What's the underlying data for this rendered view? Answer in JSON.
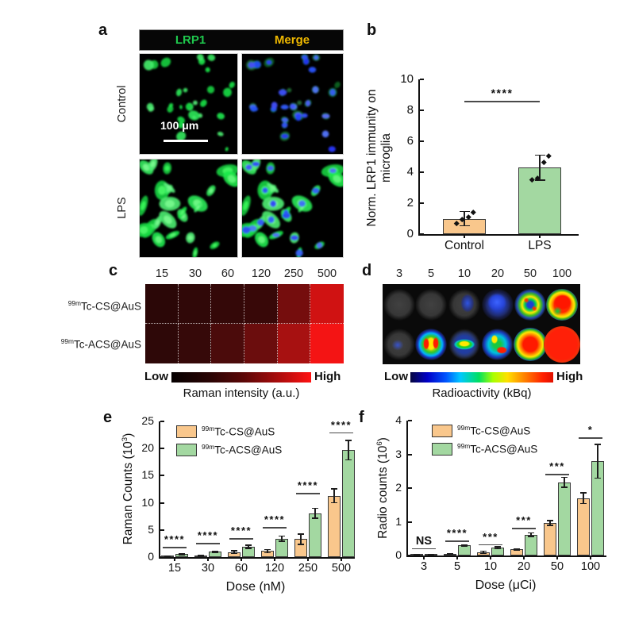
{
  "figure": {
    "panel_a": {
      "label": "a",
      "columns": [
        {
          "label": "LRP1",
          "color": "#1fc84d"
        },
        {
          "label": "Merge",
          "color": "#eeb800"
        }
      ],
      "rows": [
        {
          "label": "Control"
        },
        {
          "label": "LPS"
        }
      ],
      "scale_bar_label": "100 μm"
    },
    "panel_b": {
      "label": "b"
    },
    "panel_c": {
      "label": "c",
      "doses": [
        "15",
        "30",
        "60",
        "120",
        "250",
        "500"
      ],
      "row_labels": [
        {
          "sup": "99m",
          "text": "Tc-CS@AuS"
        },
        {
          "sup": "99m",
          "text": "Tc-ACS@AuS"
        }
      ],
      "cell_colors": [
        [
          "#2B0707",
          "#300808",
          "#340808",
          "#380808",
          "#750D0D",
          "#D01212"
        ],
        [
          "#2E0808",
          "#360909",
          "#4B0B0B",
          "#6B0D0D",
          "#A71111",
          "#F41414"
        ]
      ],
      "colorbar": {
        "low": "Low",
        "high": "High"
      },
      "caption": "Raman intensity (a.u.)"
    },
    "panel_d": {
      "label": "d",
      "doses": [
        "3",
        "5",
        "10",
        "20",
        "50",
        "100"
      ],
      "wells": [
        [
          "gray",
          "gray",
          "gray-blue",
          "blue",
          "ring",
          "red-green"
        ],
        [
          "gray-blue-sm",
          "hot-double",
          "green-bar",
          "swirl",
          "red-ring",
          "full-red"
        ]
      ],
      "colorbar": {
        "low": "Low",
        "high": "High"
      },
      "caption": "Radioactivity (kBq)"
    },
    "panel_e": {
      "label": "e"
    },
    "panel_f": {
      "label": "f"
    }
  },
  "chart_data": [
    {
      "id": "b",
      "type": "bar",
      "ylabel_lines": [
        "Norm. LRP1 immunity on",
        "microglia"
      ],
      "categories": [
        "Control",
        "LPS"
      ],
      "values": [
        1.0,
        4.3
      ],
      "errors": [
        0.45,
        0.8
      ],
      "points": [
        [
          0.72,
          0.95,
          1.12,
          1.45
        ],
        [
          3.52,
          3.62,
          4.68,
          5.08
        ]
      ],
      "bar_colors": [
        "#F9C78C",
        "#A3D8A1"
      ],
      "ylim": [
        0,
        10
      ],
      "yticks": [
        0,
        2,
        4,
        6,
        8,
        10
      ],
      "sig": {
        "label": "****",
        "y": 8.6
      }
    },
    {
      "id": "e",
      "type": "bar",
      "grouped": true,
      "ylabel_parts": {
        "pre": "Raman Counts (10",
        "sup": "3",
        "post": ")"
      },
      "xlabel": "Dose (nM)",
      "categories": [
        "15",
        "30",
        "60",
        "120",
        "250",
        "500"
      ],
      "series": [
        {
          "name_sup": "99m",
          "name": "Tc-CS@AuS",
          "color": "#F9C78C",
          "values": [
            0.15,
            0.2,
            0.9,
            1.1,
            3.3,
            11.3
          ],
          "errors": [
            0.05,
            0.06,
            0.25,
            0.3,
            0.95,
            1.3
          ]
        },
        {
          "name_sup": "99m",
          "name": "Tc-ACS@AuS",
          "color": "#A3D8A1",
          "values": [
            0.55,
            1.0,
            1.9,
            3.4,
            8.1,
            19.7
          ],
          "errors": [
            0.1,
            0.12,
            0.3,
            0.45,
            0.9,
            1.8
          ]
        }
      ],
      "ylim": [
        0,
        25
      ],
      "yticks": [
        0,
        5,
        10,
        15,
        20,
        25
      ],
      "sig": [
        {
          "label": "****",
          "y": 1.9
        },
        {
          "label": "****",
          "y": 2.6
        },
        {
          "label": "****",
          "y": 3.5
        },
        {
          "label": "****",
          "y": 5.5
        },
        {
          "label": "****",
          "y": 11.8
        },
        {
          "label": "****",
          "y": 23.0
        }
      ]
    },
    {
      "id": "f",
      "type": "bar",
      "grouped": true,
      "ylabel_parts": {
        "pre": "Radio counts (10",
        "sup": "6",
        "post": ")"
      },
      "xlabel": "Dose (μCi)",
      "categories": [
        "3",
        "5",
        "10",
        "20",
        "50",
        "100"
      ],
      "series": [
        {
          "name_sup": "99m",
          "name": "Tc-CS@AuS",
          "color": "#F9C78C",
          "values": [
            0.02,
            0.05,
            0.1,
            0.18,
            0.97,
            1.7
          ],
          "errors": [
            0.01,
            0.01,
            0.03,
            0.02,
            0.07,
            0.16
          ]
        },
        {
          "name_sup": "99m",
          "name": "Tc-ACS@AuS",
          "color": "#A3D8A1",
          "values": [
            0.03,
            0.3,
            0.23,
            0.62,
            2.17,
            2.8
          ],
          "errors": [
            0.01,
            0.02,
            0.03,
            0.05,
            0.15,
            0.5
          ]
        }
      ],
      "ylim": [
        0,
        4
      ],
      "yticks": [
        0,
        1,
        2,
        3,
        4
      ],
      "sig": [
        {
          "label": "NS",
          "y": 0.22
        },
        {
          "label": "****",
          "y": 0.44
        },
        {
          "label": "***",
          "y": 0.34
        },
        {
          "label": "***",
          "y": 0.82
        },
        {
          "label": "***",
          "y": 2.42
        },
        {
          "label": "*",
          "y": 3.5
        }
      ]
    }
  ]
}
